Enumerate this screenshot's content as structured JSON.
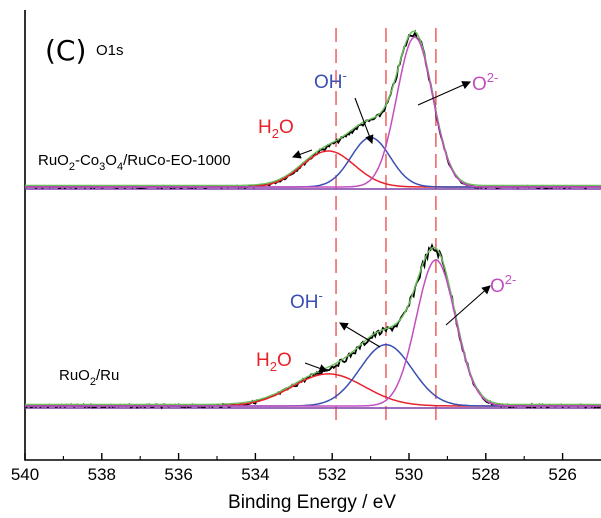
{
  "panel_label": "(C)",
  "core_level": "O1s",
  "chart_data": {
    "type": "line",
    "xlabel": "Binding Energy / eV",
    "ylabel": "",
    "x_reversed": true,
    "xlim": [
      540,
      525
    ],
    "xticks": [
      540,
      538,
      536,
      534,
      532,
      530,
      528,
      526
    ],
    "reference_lines_eV": [
      531.9,
      530.6,
      529.3
    ],
    "colors": {
      "raw": "#000000",
      "fit": "#6abf5a",
      "h2o": "#e8222b",
      "oh": "#3a4fb3",
      "o2": "#c24fc0",
      "baseline": "#7d3fa6",
      "refline": "#ef6a6a"
    },
    "spectra": [
      {
        "sample": {
          "pre": "RuO",
          "s1": "2",
          "mid1": "-Co",
          "s2": "3",
          "mid2": "O",
          "s3": "4",
          "post": "/RuCo-EO-1000"
        },
        "components": [
          {
            "species": "H2O",
            "center_eV": 532.1,
            "height": 0.24,
            "fwhm_eV": 1.6,
            "series": "h2o"
          },
          {
            "species": "OH-",
            "center_eV": 531.0,
            "height": 0.33,
            "fwhm_eV": 1.2,
            "series": "oh"
          },
          {
            "species": "O2-",
            "center_eV": 529.85,
            "height": 1.0,
            "fwhm_eV": 1.1,
            "series": "o2"
          }
        ],
        "labels": {
          "h2o": {
            "main": "H",
            "sub": "2",
            "tail": "O"
          },
          "oh": {
            "main": "OH",
            "sup": "-"
          },
          "o2": {
            "main": "O",
            "sup": "2-"
          }
        }
      },
      {
        "sample": {
          "pre": "RuO",
          "s1": "2",
          "post": "/Ru"
        },
        "components": [
          {
            "species": "H2O",
            "center_eV": 532.1,
            "height": 0.22,
            "fwhm_eV": 2.2,
            "series": "h2o"
          },
          {
            "species": "OH-",
            "center_eV": 530.6,
            "height": 0.42,
            "fwhm_eV": 1.6,
            "series": "oh"
          },
          {
            "species": "O2-",
            "center_eV": 529.3,
            "height": 1.0,
            "fwhm_eV": 1.2,
            "series": "o2"
          }
        ],
        "labels": {
          "h2o": {
            "main": "H",
            "sub": "2",
            "tail": "O"
          },
          "oh": {
            "main": "OH",
            "sup": "-"
          },
          "o2": {
            "main": "O",
            "sup": "2-"
          }
        }
      }
    ]
  }
}
